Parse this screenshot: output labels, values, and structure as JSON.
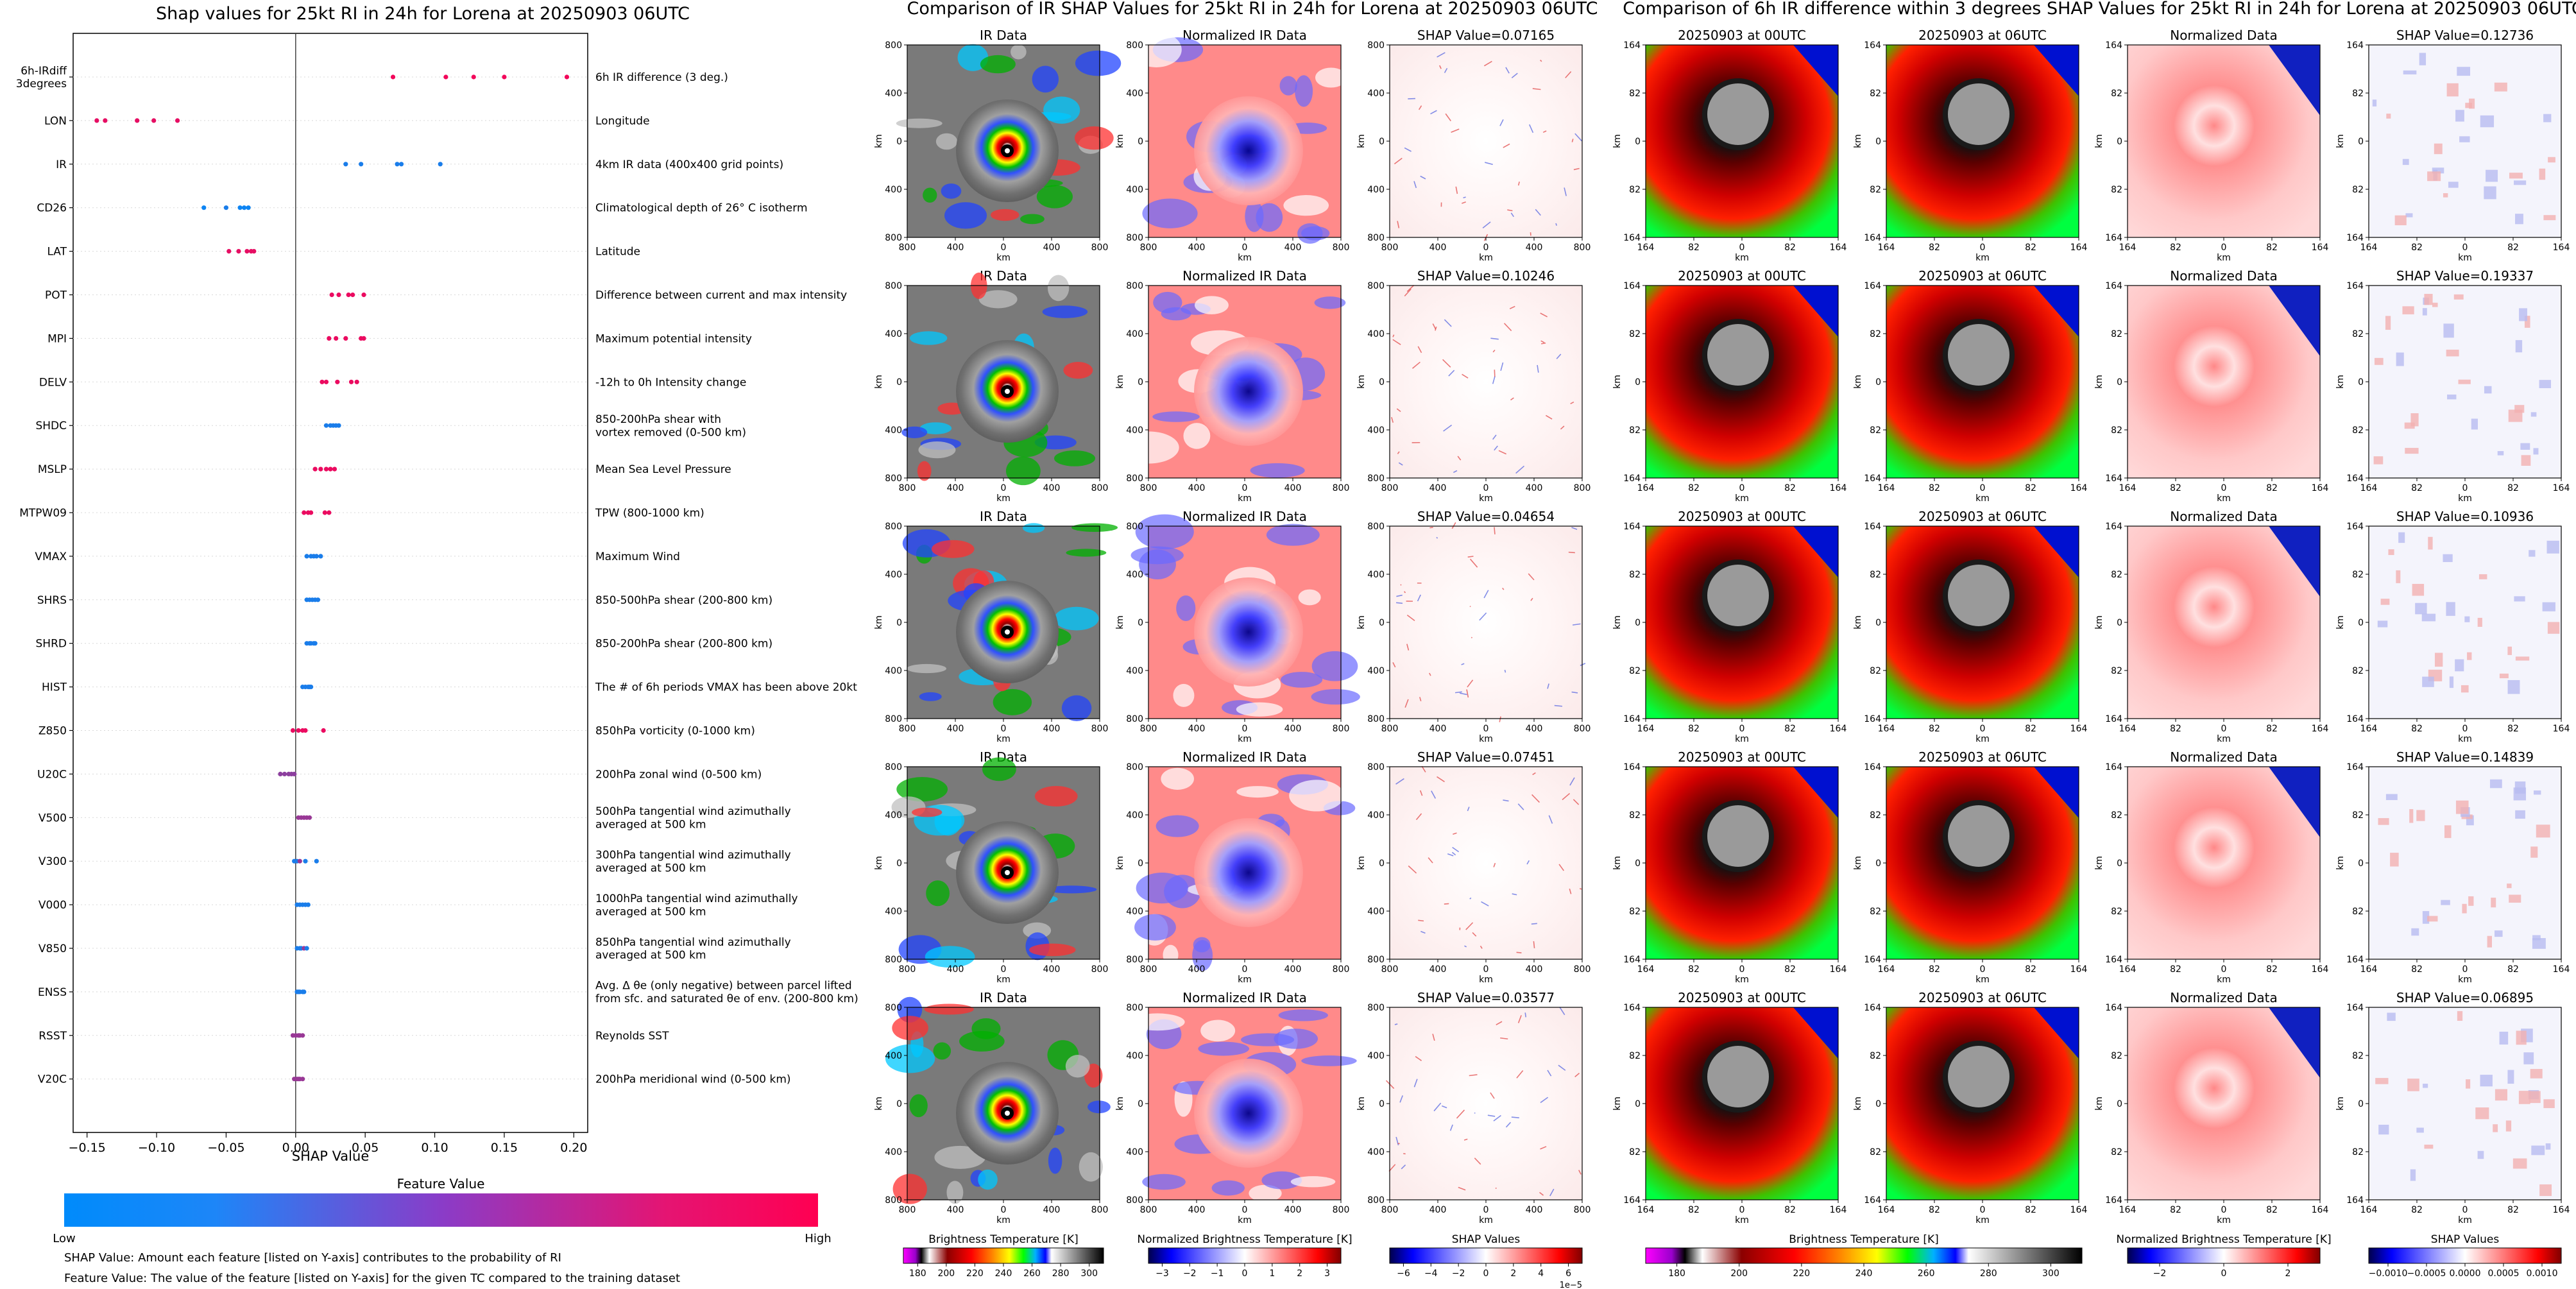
{
  "chart_data": [
    {
      "type": "scatter",
      "title": "Shap values for 25kt RI in 24h for Lorena at 20250903 06UTC",
      "xlabel": "SHAP Value",
      "xlim": [
        -0.16,
        0.21
      ],
      "xticks": [
        -0.15,
        -0.1,
        -0.05,
        0.0,
        0.05,
        0.1,
        0.15,
        0.2
      ],
      "xtick_labels": [
        "−0.15",
        "−0.10",
        "−0.05",
        "0.00",
        "0.05",
        "0.10",
        "0.15",
        "0.20"
      ],
      "grid": false,
      "colorbar": {
        "title": "Feature Value",
        "low_label": "Low",
        "high_label": "High",
        "colors": [
          "#008bfb",
          "#ff0052"
        ]
      },
      "notes": [
        "SHAP Value: Amount each feature [listed on Y-axis] contributes to the probability of RI",
        "Feature Value: The value of the feature [listed on Y-axis] for the given TC compared to the training dataset"
      ],
      "features": [
        {
          "name": "6h-IRdiff\n3degrees",
          "description": "6h IR difference (3 deg.)",
          "points": [
            [
              0.07,
              0.95
            ],
            [
              0.108,
              0.95
            ],
            [
              0.128,
              0.95
            ],
            [
              0.15,
              0.95
            ],
            [
              0.195,
              0.95
            ]
          ]
        },
        {
          "name": "LON",
          "description": "Longitude",
          "points": [
            [
              -0.143,
              0.9
            ],
            [
              -0.137,
              0.9
            ],
            [
              -0.114,
              0.9
            ],
            [
              -0.102,
              0.9
            ],
            [
              -0.085,
              0.9
            ]
          ]
        },
        {
          "name": "IR",
          "description": "4km IR data (400x400 grid points)",
          "points": [
            [
              0.036,
              0.1
            ],
            [
              0.047,
              0.1
            ],
            [
              0.073,
              0.1
            ],
            [
              0.076,
              0.1
            ],
            [
              0.104,
              0.1
            ]
          ]
        },
        {
          "name": "CD26",
          "description": "Climatological depth of 26° C isotherm",
          "points": [
            [
              -0.066,
              0.05
            ],
            [
              -0.05,
              0.1
            ],
            [
              -0.04,
              0.05
            ],
            [
              -0.037,
              0.05
            ],
            [
              -0.034,
              0.05
            ]
          ]
        },
        {
          "name": "LAT",
          "description": "Latitude",
          "points": [
            [
              -0.048,
              0.9
            ],
            [
              -0.041,
              0.9
            ],
            [
              -0.035,
              0.9
            ],
            [
              -0.032,
              0.9
            ],
            [
              -0.03,
              0.9
            ]
          ]
        },
        {
          "name": "POT",
          "description": "Difference between current and max intensity",
          "points": [
            [
              0.026,
              0.92
            ],
            [
              0.031,
              0.92
            ],
            [
              0.038,
              0.92
            ],
            [
              0.041,
              0.92
            ],
            [
              0.049,
              0.92
            ]
          ]
        },
        {
          "name": "MPI",
          "description": "Maximum potential intensity",
          "points": [
            [
              0.024,
              0.92
            ],
            [
              0.029,
              0.92
            ],
            [
              0.036,
              0.92
            ],
            [
              0.047,
              0.92
            ],
            [
              0.049,
              0.92
            ]
          ]
        },
        {
          "name": "DELV",
          "description": "-12h to 0h Intensity change",
          "points": [
            [
              0.019,
              0.92
            ],
            [
              0.022,
              0.92
            ],
            [
              0.03,
              0.92
            ],
            [
              0.04,
              0.92
            ],
            [
              0.044,
              0.92
            ]
          ]
        },
        {
          "name": "SHDC",
          "description": "850-200hPa shear with\nvortex removed (0-500 km)",
          "points": [
            [
              0.022,
              0.1
            ],
            [
              0.025,
              0.1
            ],
            [
              0.027,
              0.1
            ],
            [
              0.029,
              0.1
            ],
            [
              0.031,
              0.1
            ]
          ]
        },
        {
          "name": "MSLP",
          "description": "Mean Sea Level Pressure",
          "points": [
            [
              0.014,
              0.92
            ],
            [
              0.018,
              0.92
            ],
            [
              0.022,
              0.92
            ],
            [
              0.025,
              0.92
            ],
            [
              0.028,
              0.92
            ]
          ]
        },
        {
          "name": "MTPW09",
          "description": "TPW (800-1000 km)",
          "points": [
            [
              0.006,
              0.92
            ],
            [
              0.009,
              0.92
            ],
            [
              0.011,
              0.92
            ],
            [
              0.021,
              0.92
            ],
            [
              0.024,
              0.92
            ]
          ]
        },
        {
          "name": "VMAX",
          "description": "Maximum Wind",
          "points": [
            [
              0.008,
              0.1
            ],
            [
              0.011,
              0.1
            ],
            [
              0.013,
              0.1
            ],
            [
              0.015,
              0.1
            ],
            [
              0.018,
              0.1
            ]
          ]
        },
        {
          "name": "SHRS",
          "description": "850-500hPa shear (200-800 km)",
          "points": [
            [
              0.008,
              0.1
            ],
            [
              0.01,
              0.1
            ],
            [
              0.012,
              0.1
            ],
            [
              0.014,
              0.1
            ],
            [
              0.016,
              0.1
            ]
          ]
        },
        {
          "name": "SHRD",
          "description": "850-200hPa shear (200-800 km)",
          "points": [
            [
              0.008,
              0.1
            ],
            [
              0.01,
              0.1
            ],
            [
              0.011,
              0.1
            ],
            [
              0.013,
              0.1
            ],
            [
              0.014,
              0.1
            ]
          ]
        },
        {
          "name": "HIST",
          "description": "The # of 6h periods VMAX has been above 20kt",
          "points": [
            [
              0.005,
              0.1
            ],
            [
              0.007,
              0.1
            ],
            [
              0.009,
              0.1
            ],
            [
              0.01,
              0.1
            ],
            [
              0.011,
              0.1
            ]
          ]
        },
        {
          "name": "Z850",
          "description": "850hPa vorticity (0-1000 km)",
          "points": [
            [
              -0.002,
              0.92
            ],
            [
              0.002,
              0.92
            ],
            [
              0.005,
              0.92
            ],
            [
              0.007,
              0.92
            ],
            [
              0.02,
              0.92
            ]
          ]
        },
        {
          "name": "U20C",
          "description": "200hPa zonal wind (0-500 km)",
          "points": [
            [
              -0.011,
              0.55
            ],
            [
              -0.008,
              0.55
            ],
            [
              -0.005,
              0.55
            ],
            [
              -0.003,
              0.55
            ],
            [
              -0.001,
              0.55
            ]
          ]
        },
        {
          "name": "V500",
          "description": "500hPa tangential wind azimuthally\naveraged at 500 km",
          "points": [
            [
              0.002,
              0.6
            ],
            [
              0.004,
              0.6
            ],
            [
              0.006,
              0.6
            ],
            [
              0.008,
              0.6
            ],
            [
              0.01,
              0.6
            ]
          ]
        },
        {
          "name": "V300",
          "description": "300hPa tangential wind azimuthally\naveraged at 500 km",
          "points": [
            [
              -0.001,
              0.1
            ],
            [
              0.001,
              0.1
            ],
            [
              0.003,
              0.6
            ],
            [
              0.007,
              0.1
            ],
            [
              0.015,
              0.1
            ]
          ]
        },
        {
          "name": "V000",
          "description": "1000hPa tangential wind azimuthally\naveraged at 500 km",
          "points": [
            [
              0.001,
              0.1
            ],
            [
              0.003,
              0.1
            ],
            [
              0.005,
              0.1
            ],
            [
              0.007,
              0.1
            ],
            [
              0.009,
              0.1
            ]
          ]
        },
        {
          "name": "V850",
          "description": "850hPa tangential wind azimuthally\naveraged at 500 km",
          "points": [
            [
              0.001,
              0.1
            ],
            [
              0.003,
              0.1
            ],
            [
              0.004,
              0.1
            ],
            [
              0.006,
              0.6
            ],
            [
              0.008,
              0.1
            ]
          ]
        },
        {
          "name": "ENSS",
          "description": "Avg. Δ θe (only negative) between parcel lifted\nfrom sfc. and saturated θe of env. (200-800 km)",
          "points": [
            [
              0.001,
              0.1
            ],
            [
              0.002,
              0.1
            ],
            [
              0.003,
              0.1
            ],
            [
              0.005,
              0.1
            ],
            [
              0.006,
              0.1
            ]
          ]
        },
        {
          "name": "RSST",
          "description": "Reynolds SST",
          "points": [
            [
              -0.002,
              0.6
            ],
            [
              0.0,
              0.6
            ],
            [
              0.002,
              0.6
            ],
            [
              0.003,
              0.6
            ],
            [
              0.005,
              0.6
            ]
          ]
        },
        {
          "name": "V20C",
          "description": "200hPa meridional wind (0-500 km)",
          "points": [
            [
              -0.001,
              0.6
            ],
            [
              0.001,
              0.6
            ],
            [
              0.002,
              0.6
            ],
            [
              0.003,
              0.6
            ],
            [
              0.005,
              0.6
            ]
          ]
        }
      ]
    },
    {
      "type": "heatmap",
      "title": "Comparison of IR SHAP Values for 25kt RI in 24h for Lorena at 20250903 06UTC",
      "xlabel": "km",
      "ylabel": "km",
      "xticks": [
        "800",
        "400",
        "0",
        "400",
        "800"
      ],
      "yticks": [
        "800",
        "400",
        "0",
        "400",
        "800"
      ],
      "rows": [
        {
          "ir_title": "IR Data",
          "norm_title": "Normalized IR Data",
          "shap_title": "SHAP Value=0.07165"
        },
        {
          "ir_title": "IR Data",
          "norm_title": "Normalized IR Data",
          "shap_title": "SHAP Value=0.10246"
        },
        {
          "ir_title": "IR Data",
          "norm_title": "Normalized IR Data",
          "shap_title": "SHAP Value=0.04654"
        },
        {
          "ir_title": "IR Data",
          "norm_title": "Normalized IR Data",
          "shap_title": "SHAP Value=0.07451"
        },
        {
          "ir_title": "IR Data",
          "norm_title": "Normalized IR Data",
          "shap_title": "SHAP Value=0.03577"
        }
      ],
      "colorbars": [
        {
          "label": "Brightness Temperature [K]",
          "ticks": [
            "180",
            "200",
            "220",
            "240",
            "260",
            "280",
            "300"
          ],
          "offset": ""
        },
        {
          "label": "Normalized Brightness Temperature [K]",
          "ticks": [
            "−3",
            "−2",
            "−1",
            "0",
            "1",
            "2",
            "3"
          ],
          "offset": ""
        },
        {
          "label": "SHAP Values",
          "ticks": [
            "−6",
            "−4",
            "−2",
            "0",
            "2",
            "4",
            "6"
          ],
          "offset": "1e−5"
        }
      ]
    },
    {
      "type": "heatmap",
      "title": "Comparison of 6h IR difference within 3 degrees SHAP Values for 25kt RI in 24h for Lorena at 20250903 06UTC",
      "xlabel": "km",
      "ylabel": "km",
      "xticks": [
        "164",
        "82",
        "0",
        "82",
        "164"
      ],
      "yticks": [
        "164",
        "82",
        "0",
        "82",
        "164"
      ],
      "rows": [
        {
          "t1_title": "20250903 at 00UTC",
          "t2_title": "20250903 at 06UTC",
          "norm_title": "Normalized Data",
          "shap_title": "SHAP Value=0.12736"
        },
        {
          "t1_title": "20250903 at 00UTC",
          "t2_title": "20250903 at 06UTC",
          "norm_title": "Normalized Data",
          "shap_title": "SHAP Value=0.19337"
        },
        {
          "t1_title": "20250903 at 00UTC",
          "t2_title": "20250903 at 06UTC",
          "norm_title": "Normalized Data",
          "shap_title": "SHAP Value=0.10936"
        },
        {
          "t1_title": "20250903 at 00UTC",
          "t2_title": "20250903 at 06UTC",
          "norm_title": "Normalized Data",
          "shap_title": "SHAP Value=0.14839"
        },
        {
          "t1_title": "20250903 at 00UTC",
          "t2_title": "20250903 at 06UTC",
          "norm_title": "Normalized Data",
          "shap_title": "SHAP Value=0.06895"
        }
      ],
      "colorbars": [
        {
          "label": "Brightness Temperature [K]",
          "ticks": [
            "180",
            "200",
            "220",
            "240",
            "260",
            "280",
            "300"
          ],
          "offset": ""
        },
        {
          "label": "Normalized Brightness Temperature [K]",
          "ticks": [
            "−2",
            "0",
            "2"
          ],
          "offset": ""
        },
        {
          "label": "SHAP Values",
          "ticks": [
            "−0.0010",
            "−0.0005",
            "0.0000",
            "0.0005",
            "0.0010"
          ],
          "offset": ""
        }
      ]
    }
  ]
}
